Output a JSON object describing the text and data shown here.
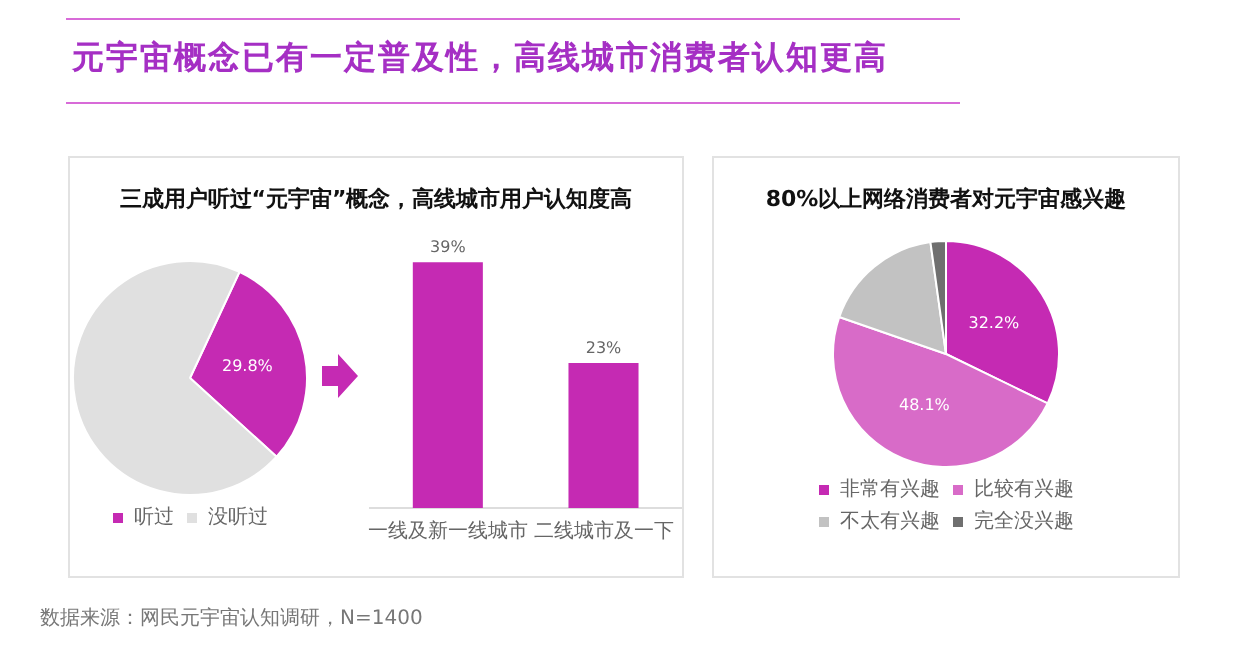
{
  "chart_data": [
    {
      "type": "pie",
      "title": "元宇宙概念已有一定普及性，高线城市消费者认知更高",
      "subtitle": "三成用户听过“元宇宙”概念，高线城市用户认知度高",
      "categories": [
        "听过",
        "没听过"
      ],
      "values": [
        29.8,
        70.2
      ],
      "colors": [
        "#c52ab3",
        "#e0e0e0"
      ],
      "value_labels": [
        "29.8%",
        null
      ],
      "legend": "bottom",
      "annotations": [
        "数据来源：网民元宇宙认知调研，N=1400"
      ]
    },
    {
      "type": "bar",
      "categories": [
        "一线及新一线城市",
        "二线城市及一下"
      ],
      "values": [
        39,
        23
      ],
      "color": "#c52ab3",
      "value_labels": [
        "39%",
        "23%"
      ]
    },
    {
      "type": "pie",
      "title": "80%以上网络消费者对元宇宙感兴趣",
      "categories": [
        "非常有兴趣",
        "比较有兴趣",
        "不太有兴趣",
        "完全没兴趣"
      ],
      "values": [
        32.2,
        48.1,
        17.5,
        2.2
      ],
      "colors": [
        "#c52ab3",
        "#d86bc8",
        "#c2c2c2",
        "#6f6f6f"
      ],
      "value_labels": [
        "32.2%",
        "48.1%",
        null,
        null
      ],
      "legend": "bottom"
    }
  ]
}
